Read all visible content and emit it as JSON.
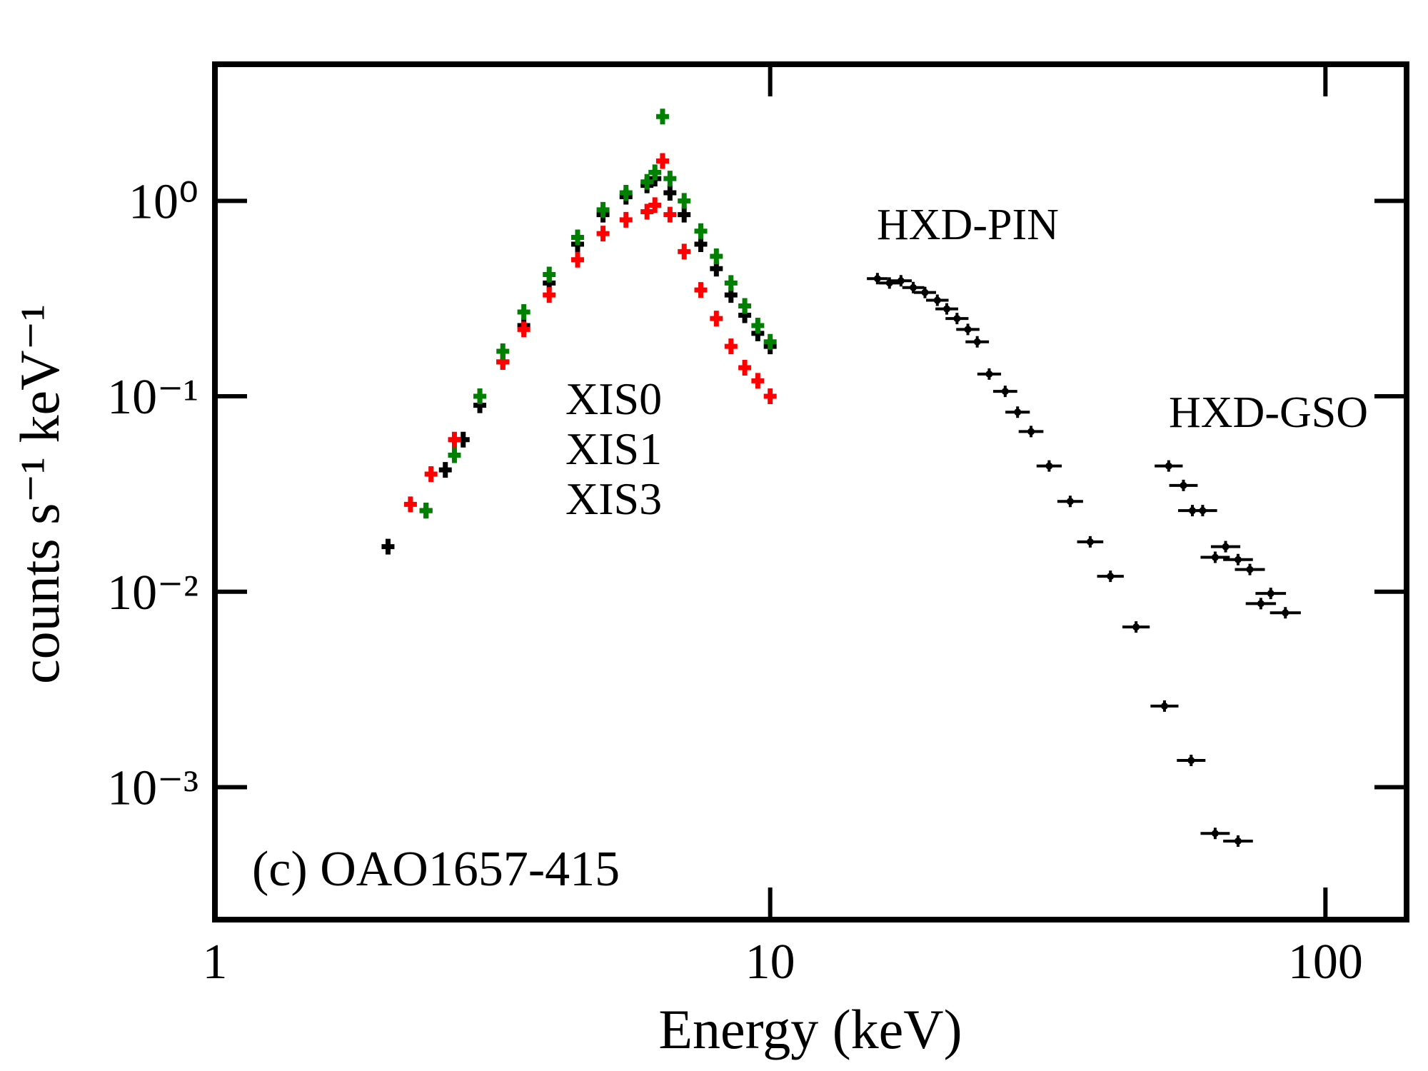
{
  "chart_data": {
    "type": "scatter",
    "x_label": "Energy (keV)",
    "y_label": "counts s⁻¹ keV⁻¹",
    "annotation": "(c) OAO1657-415",
    "xscale": "log",
    "yscale": "log",
    "xlim": [
      1,
      140
    ],
    "ylim": [
      0.00021,
      5
    ],
    "xticks": [
      1,
      10,
      100
    ],
    "yticks": [
      {
        "value": 0.001,
        "label": "10⁻³"
      },
      {
        "value": 0.01,
        "label": "10⁻²"
      },
      {
        "value": 0.1,
        "label": "10⁻¹"
      },
      {
        "value": 1,
        "label": "10⁰"
      }
    ],
    "series": [
      {
        "name": "XIS0",
        "color": "#000000",
        "x": [
          2.05,
          2.4,
          2.6,
          2.8,
          3.0,
          3.3,
          3.6,
          4.0,
          4.5,
          5.0,
          5.5,
          6.0,
          6.2,
          6.4,
          6.6,
          7.0,
          7.5,
          8.0,
          8.5,
          9.0,
          9.5,
          10.0
        ],
        "values": [
          0.017,
          0.026,
          0.042,
          0.06,
          0.09,
          0.15,
          0.23,
          0.38,
          0.6,
          0.85,
          1.05,
          1.2,
          1.3,
          1.6,
          1.1,
          0.85,
          0.6,
          0.45,
          0.33,
          0.26,
          0.21,
          0.18
        ]
      },
      {
        "name": "XIS1",
        "color": "#ff0000",
        "x": [
          2.25,
          2.45,
          2.7,
          3.0,
          3.3,
          3.6,
          4.0,
          4.5,
          5.0,
          5.5,
          6.0,
          6.2,
          6.4,
          6.6,
          7.0,
          7.5,
          8.0,
          8.5,
          9.0,
          9.5,
          10.0
        ],
        "values": [
          0.028,
          0.04,
          0.06,
          0.1,
          0.15,
          0.22,
          0.33,
          0.5,
          0.68,
          0.8,
          0.88,
          0.95,
          1.6,
          0.85,
          0.55,
          0.35,
          0.25,
          0.18,
          0.14,
          0.12,
          0.1
        ]
      },
      {
        "name": "XIS3",
        "color": "#008000",
        "x": [
          2.4,
          2.7,
          3.0,
          3.3,
          3.6,
          4.0,
          4.5,
          5.0,
          5.5,
          6.0,
          6.2,
          6.4,
          6.6,
          7.0,
          7.5,
          8.0,
          8.5,
          9.0,
          9.5,
          10.0
        ],
        "values": [
          0.026,
          0.05,
          0.1,
          0.17,
          0.27,
          0.42,
          0.65,
          0.9,
          1.1,
          1.25,
          1.4,
          2.7,
          1.3,
          1.0,
          0.7,
          0.52,
          0.38,
          0.29,
          0.23,
          0.19
        ]
      },
      {
        "name": "HXD-PIN",
        "color": "#000000",
        "x": [
          15.6,
          16.4,
          17.2,
          18.1,
          19.0,
          20.0,
          20.8,
          21.7,
          22.7,
          23.6,
          24.8,
          26.5,
          27.9,
          29.5,
          31.8,
          34.7,
          37.7,
          41.0,
          45.6,
          51.3,
          57.3,
          63.3,
          69.6
        ],
        "values": [
          0.4,
          0.38,
          0.39,
          0.36,
          0.34,
          0.31,
          0.28,
          0.25,
          0.22,
          0.19,
          0.13,
          0.106,
          0.083,
          0.066,
          0.044,
          0.029,
          0.018,
          0.012,
          0.0066,
          0.0026,
          0.00137,
          0.00058,
          0.00053
        ]
      },
      {
        "name": "HXD-GSO",
        "color": "#000000",
        "x": [
          52.2,
          55.5,
          57.6,
          60.1,
          63.3,
          66.1,
          69.6,
          73.1,
          76.5,
          79.7,
          84.7
        ],
        "values": [
          0.044,
          0.035,
          0.026,
          0.026,
          0.015,
          0.017,
          0.0146,
          0.013,
          0.0087,
          0.0098,
          0.0078
        ]
      }
    ]
  }
}
